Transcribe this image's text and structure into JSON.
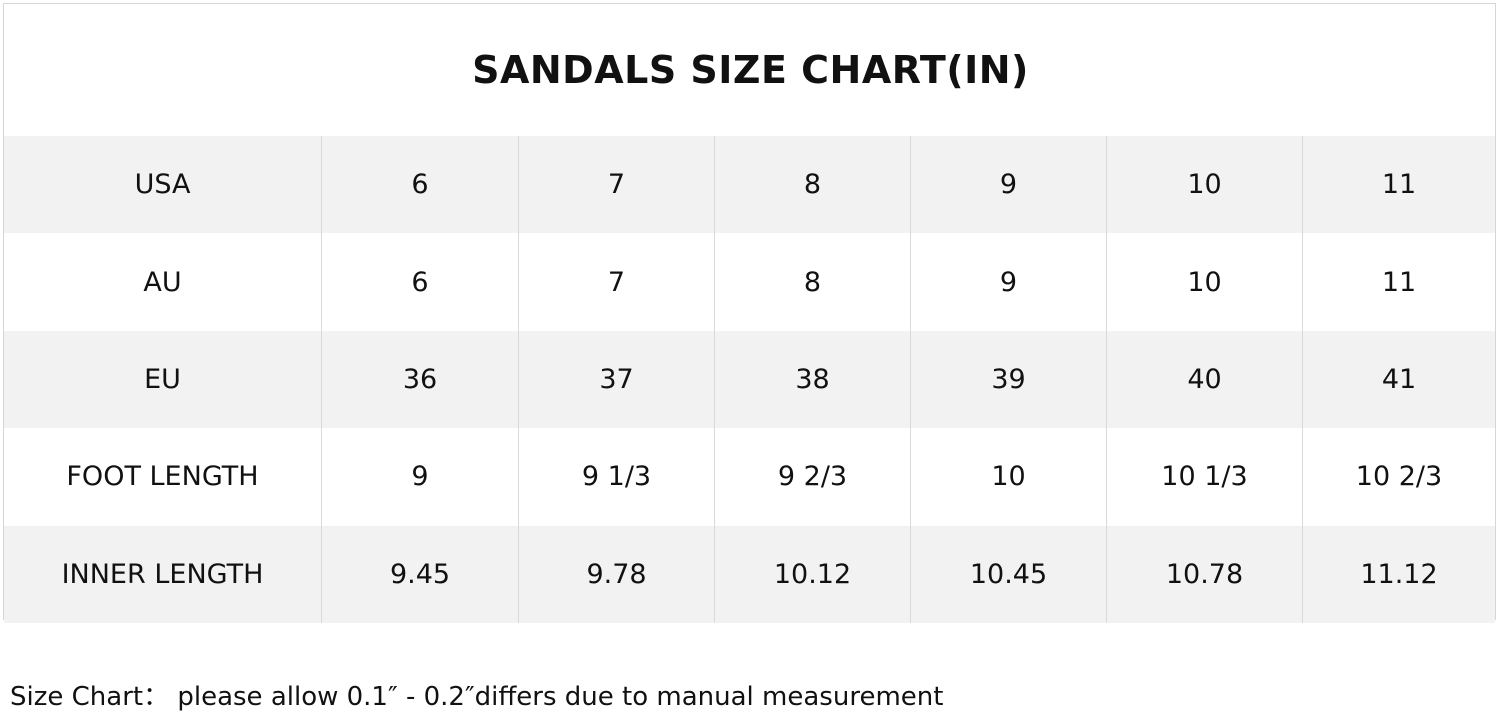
{
  "table": {
    "title": "SANDALS SIZE CHART(IN)",
    "rows": [
      [
        "USA",
        "6",
        "7",
        "8",
        "9",
        "10",
        "11"
      ],
      [
        "AU",
        "6",
        "7",
        "8",
        "9",
        "10",
        "11"
      ],
      [
        "EU",
        "36",
        "37",
        "38",
        "39",
        "40",
        "41"
      ],
      [
        "FOOT LENGTH",
        "9",
        "9 1/3",
        "9 2/3",
        "10",
        "10 1/3",
        "10 2/3"
      ],
      [
        "INNER LENGTH",
        "9.45",
        "9.78",
        "10.12",
        "10.45",
        "10.78",
        "11.12"
      ]
    ]
  },
  "footer": {
    "note": "Size Chart：  please allow 0.1″ - 0.2″differs due to manual measurement"
  }
}
